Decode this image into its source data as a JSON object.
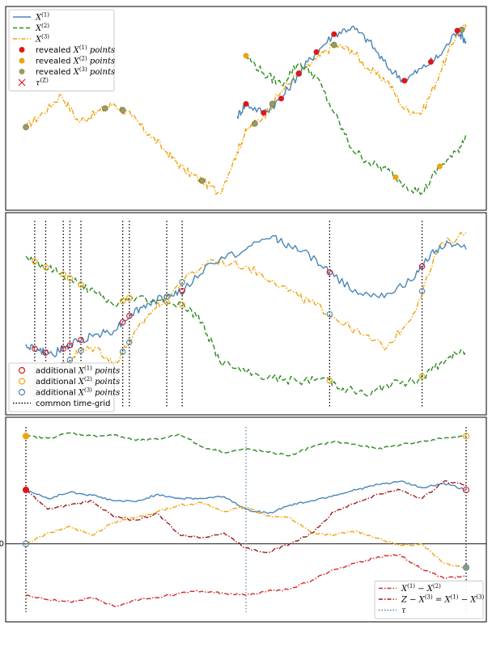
{
  "colors": {
    "x1": "#4a86b8",
    "x2": "#2e8b22",
    "x3": "#f0a30a",
    "revealed1": "#e0151b",
    "revealed3": "#9a9a62",
    "tau": "#e0151b",
    "diff12": "#d62728",
    "diff_z3": "#a01c1c",
    "tau_line": "#4a86b8",
    "grid_line": "#000000"
  },
  "chart_data": [
    {
      "type": "line",
      "panel": "top",
      "xlim": [
        0,
        1
      ],
      "legend": {
        "placement": "top-left",
        "entries": [
          {
            "key": "x1",
            "symbol": "line",
            "label": "X",
            "sup": "(1)",
            "suffix": ""
          },
          {
            "key": "x2",
            "symbol": "dash",
            "label": "X",
            "sup": "(2)",
            "suffix": ""
          },
          {
            "key": "x3",
            "symbol": "dashdot",
            "label": "X",
            "sup": "(3)",
            "suffix": ""
          },
          {
            "key": "revealed1",
            "symbol": "dot",
            "prefix": "revealed ",
            "label": "X",
            "sup": "(1)",
            "suffix": " points"
          },
          {
            "key": "x3",
            "symbol": "dot",
            "prefix": "revealed ",
            "label": "X",
            "sup": "(2)",
            "suffix": " points"
          },
          {
            "key": "revealed3",
            "symbol": "dot",
            "prefix": "revealed ",
            "label": "X",
            "sup": "(3)",
            "suffix": " points"
          },
          {
            "key": "tau",
            "symbol": "cross",
            "prefix": "",
            "label": "τ",
            "sup": "(Z)",
            "suffix": ""
          }
        ]
      },
      "series": [
        {
          "key": "x3",
          "style": "dashdot",
          "x": [
            0.0,
            0.04,
            0.08,
            0.12,
            0.16,
            0.2,
            0.24,
            0.28,
            0.32,
            0.36,
            0.4,
            0.44,
            0.48,
            0.5,
            0.54,
            0.58,
            0.62,
            0.66,
            0.7,
            0.74,
            0.78,
            0.82,
            0.86,
            0.9,
            0.94,
            0.98,
            1.0
          ],
          "y": [
            0.42,
            0.5,
            0.6,
            0.45,
            0.5,
            0.55,
            0.48,
            0.38,
            0.28,
            0.18,
            0.12,
            0.05,
            0.28,
            0.4,
            0.48,
            0.62,
            0.72,
            0.8,
            0.88,
            0.85,
            0.74,
            0.68,
            0.52,
            0.5,
            0.72,
            0.95,
            0.98
          ]
        },
        {
          "key": "x1",
          "style": "solid",
          "x": [
            0.48,
            0.5,
            0.54,
            0.58,
            0.62,
            0.66,
            0.7,
            0.74,
            0.78,
            0.82,
            0.86,
            0.9,
            0.94,
            0.98,
            1.0
          ],
          "y": [
            0.48,
            0.55,
            0.5,
            0.58,
            0.72,
            0.84,
            0.94,
            0.98,
            0.9,
            0.76,
            0.68,
            0.75,
            0.82,
            0.96,
            0.9
          ]
        },
        {
          "key": "x2",
          "style": "dashed",
          "x": [
            0.5,
            0.54,
            0.58,
            0.62,
            0.66,
            0.7,
            0.74,
            0.78,
            0.82,
            0.86,
            0.9,
            0.94,
            0.98,
            1.0
          ],
          "y": [
            0.82,
            0.72,
            0.66,
            0.78,
            0.7,
            0.5,
            0.3,
            0.22,
            0.18,
            0.1,
            0.05,
            0.2,
            0.28,
            0.38
          ]
        }
      ],
      "revealed_x1": [
        0.5,
        0.54,
        0.58,
        0.62,
        0.66,
        0.7,
        0.86,
        0.92,
        0.98
      ],
      "revealed_x2": [
        0.5,
        0.84,
        0.94
      ],
      "revealed_x3": [
        0.0,
        0.18,
        0.22,
        0.4,
        0.52,
        0.56,
        0.62,
        0.7,
        0.99
      ]
    },
    {
      "type": "line",
      "panel": "middle",
      "xlim": [
        0,
        1
      ],
      "legend": {
        "placement": "bottom-left",
        "entries": [
          {
            "key": "revealed1",
            "symbol": "ring",
            "prefix": "additional ",
            "label": "X",
            "sup": "(1)",
            "suffix": " points"
          },
          {
            "key": "x3",
            "symbol": "ring",
            "prefix": "additional ",
            "label": "X",
            "sup": "(2)",
            "suffix": " points"
          },
          {
            "key": "x1",
            "symbol": "ring",
            "prefix": "additional ",
            "label": "X",
            "sup": "(3)",
            "suffix": " points"
          },
          {
            "key": "grid_line",
            "symbol": "dotted",
            "prefix": "common time-grid",
            "label": "",
            "sup": "",
            "suffix": ""
          }
        ]
      },
      "time_grid": [
        0.02,
        0.045,
        0.085,
        0.1,
        0.125,
        0.22,
        0.235,
        0.32,
        0.355,
        0.69,
        0.9
      ],
      "series": [
        {
          "key": "x3",
          "style": "dashdot",
          "x": [
            0.0,
            0.03,
            0.06,
            0.09,
            0.12,
            0.16,
            0.2,
            0.24,
            0.28,
            0.32,
            0.36,
            0.42,
            0.5,
            0.56,
            0.62,
            0.66,
            0.7,
            0.76,
            0.82,
            0.88,
            0.94,
            1.0
          ],
          "y": [
            0.1,
            0.05,
            0.18,
            0.2,
            0.28,
            0.3,
            0.2,
            0.35,
            0.5,
            0.6,
            0.7,
            0.82,
            0.78,
            0.7,
            0.6,
            0.55,
            0.48,
            0.38,
            0.3,
            0.5,
            0.9,
            0.98
          ]
        },
        {
          "key": "x1",
          "style": "solid",
          "x": [
            0.0,
            0.03,
            0.06,
            0.09,
            0.12,
            0.16,
            0.2,
            0.24,
            0.28,
            0.32,
            0.36,
            0.42,
            0.5,
            0.56,
            0.6,
            0.66,
            0.7,
            0.76,
            0.82,
            0.88,
            0.92,
            0.96,
            1.0
          ],
          "y": [
            0.32,
            0.28,
            0.26,
            0.3,
            0.34,
            0.38,
            0.4,
            0.5,
            0.56,
            0.6,
            0.64,
            0.8,
            0.88,
            0.96,
            0.9,
            0.82,
            0.72,
            0.62,
            0.62,
            0.7,
            0.86,
            0.92,
            0.88
          ]
        },
        {
          "key": "x2",
          "style": "dashed",
          "x": [
            0.0,
            0.04,
            0.08,
            0.12,
            0.16,
            0.2,
            0.24,
            0.3,
            0.36,
            0.4,
            0.44,
            0.5,
            0.56,
            0.62,
            0.68,
            0.72,
            0.78,
            0.82,
            0.88,
            0.92,
            0.96,
            1.0
          ],
          "y": [
            0.84,
            0.78,
            0.74,
            0.68,
            0.62,
            0.55,
            0.6,
            0.58,
            0.55,
            0.45,
            0.22,
            0.15,
            0.12,
            0.1,
            0.12,
            0.06,
            0.02,
            0.08,
            0.1,
            0.16,
            0.24,
            0.28
          ]
        }
      ]
    },
    {
      "type": "line",
      "panel": "bottom",
      "xlim": [
        0,
        1
      ],
      "yticks": [
        "0"
      ],
      "tau_x": 0.5,
      "legend": {
        "placement": "bottom-right",
        "entries": [
          {
            "key": "diff12",
            "symbol": "dashdot",
            "prefix": "",
            "label": "X",
            "sup": "(1)",
            "suffix": " − X",
            "sup2": "(2)"
          },
          {
            "key": "diff_z3",
            "symbol": "dashdot",
            "prefix": "",
            "label": "Z − X",
            "sup": "(3)",
            "suffix": " = X",
            "sup2": "(1)",
            "suffix2": " − X",
            "sup3": "(3)"
          },
          {
            "key": "tau_line",
            "symbol": "dotted",
            "prefix": "",
            "label": "τ",
            "sup": "",
            "suffix": ""
          }
        ]
      },
      "series": [
        {
          "key": "x2",
          "style": "dashed",
          "x": [
            0.0,
            0.05,
            0.1,
            0.15,
            0.2,
            0.25,
            0.3,
            0.35,
            0.4,
            0.45,
            0.5,
            0.55,
            0.6,
            0.65,
            0.7,
            0.75,
            0.8,
            0.85,
            0.9,
            0.95,
            1.0
          ],
          "y": [
            1.0,
            0.98,
            1.03,
            1.0,
            1.01,
            0.96,
            0.97,
            1.02,
            0.9,
            0.85,
            0.88,
            0.85,
            0.82,
            0.9,
            0.95,
            0.92,
            0.88,
            0.92,
            0.95,
            0.98,
            1.0
          ]
        },
        {
          "key": "x1",
          "style": "solid",
          "x": [
            0.0,
            0.05,
            0.1,
            0.15,
            0.2,
            0.25,
            0.3,
            0.35,
            0.4,
            0.45,
            0.5,
            0.55,
            0.6,
            0.65,
            0.7,
            0.75,
            0.8,
            0.85,
            0.9,
            0.95,
            1.0
          ],
          "y": [
            0.5,
            0.42,
            0.48,
            0.45,
            0.4,
            0.39,
            0.46,
            0.42,
            0.42,
            0.44,
            0.32,
            0.28,
            0.36,
            0.4,
            0.45,
            0.5,
            0.55,
            0.58,
            0.52,
            0.56,
            0.5
          ]
        },
        {
          "key": "x3",
          "style": "dashdot",
          "x": [
            0.0,
            0.05,
            0.1,
            0.15,
            0.2,
            0.25,
            0.3,
            0.35,
            0.4,
            0.45,
            0.5,
            0.55,
            0.6,
            0.65,
            0.7,
            0.75,
            0.8,
            0.85,
            0.9,
            0.95,
            1.0
          ],
          "y": [
            0.0,
            0.1,
            0.16,
            0.08,
            0.2,
            0.24,
            0.3,
            0.36,
            0.38,
            0.3,
            0.34,
            0.26,
            0.24,
            0.1,
            0.08,
            0.12,
            0.05,
            -0.02,
            0.0,
            -0.18,
            -0.22
          ]
        },
        {
          "key": "diff_z3",
          "style": "dashdot",
          "x": [
            0.0,
            0.05,
            0.1,
            0.15,
            0.2,
            0.25,
            0.3,
            0.35,
            0.4,
            0.45,
            0.5,
            0.55,
            0.6,
            0.65,
            0.7,
            0.75,
            0.8,
            0.85,
            0.9,
            0.95,
            1.0
          ],
          "y": [
            0.5,
            0.32,
            0.36,
            0.4,
            0.25,
            0.22,
            0.28,
            0.08,
            0.06,
            0.1,
            -0.04,
            -0.08,
            0.0,
            0.1,
            0.3,
            0.38,
            0.46,
            0.5,
            0.42,
            0.58,
            0.55
          ]
        },
        {
          "key": "diff12",
          "style": "dashdot",
          "x": [
            0.0,
            0.05,
            0.1,
            0.15,
            0.2,
            0.25,
            0.3,
            0.35,
            0.4,
            0.45,
            0.5,
            0.55,
            0.6,
            0.65,
            0.7,
            0.75,
            0.8,
            0.85,
            0.9,
            0.95,
            1.0
          ],
          "y": [
            -0.48,
            -0.52,
            -0.54,
            -0.5,
            -0.58,
            -0.52,
            -0.5,
            -0.46,
            -0.44,
            -0.46,
            -0.48,
            -0.44,
            -0.42,
            -0.34,
            -0.24,
            -0.18,
            -0.12,
            -0.1,
            -0.24,
            -0.32,
            -0.3
          ]
        }
      ]
    }
  ]
}
